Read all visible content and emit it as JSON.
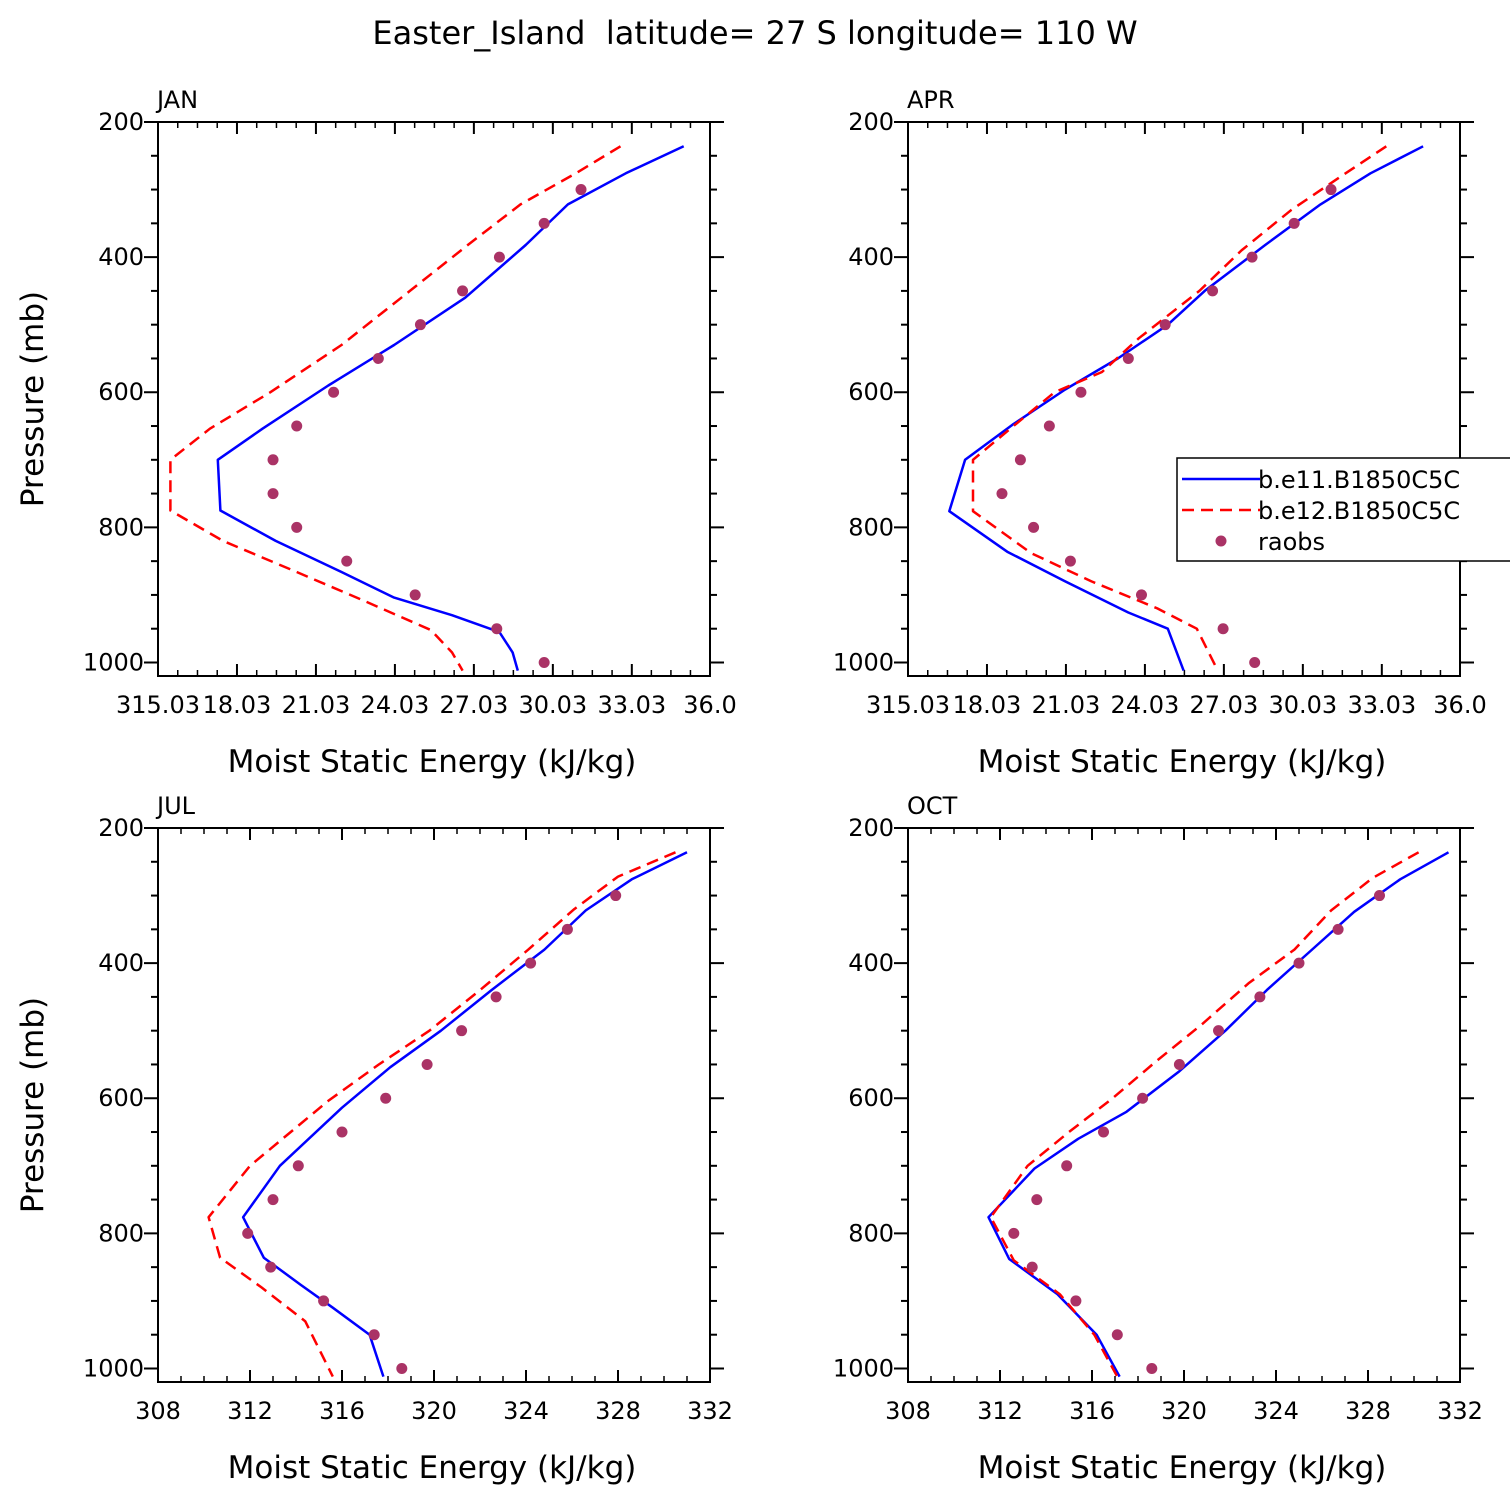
{
  "figure": {
    "title": "Easter_Island  latitude= 27 S longitude= 110 W"
  },
  "legend": {
    "entries": [
      "b.e11.B1850C5C",
      "b.e12.B1850C5C",
      "raobs"
    ],
    "placement": "right of APR panel"
  },
  "colors": {
    "series_1": "#0000ff",
    "series_2": "#ff0000",
    "raobs": "#aa3366"
  },
  "chart_data": [
    {
      "type": "line",
      "panel_label": "JAN",
      "xlabel": "Moist Static Energy (kJ/kg)",
      "ylabel": "Pressure (mb)",
      "xlim": [
        315.03,
        336.0
      ],
      "ylim": [
        1020,
        200
      ],
      "x_tick_values": [
        315.03,
        318.03,
        321.03,
        324.03,
        327.03,
        330.03,
        333.03,
        336.0
      ],
      "x_tick_labels": [
        "315.03",
        "18.03",
        "21.03",
        "24.03",
        "27.03",
        "30.03",
        "33.03",
        "36.0"
      ],
      "y_ticks": [
        200,
        400,
        600,
        800,
        1000
      ],
      "series": [
        {
          "name": "b.e11.B1850C5C",
          "style": "solid",
          "x": [
            335.0,
            332.8,
            330.6,
            329.0,
            326.7,
            324.0,
            321.5,
            319.0,
            317.3,
            317.4,
            319.5,
            322.0,
            324.0,
            326.2,
            328.0,
            328.5,
            328.7
          ],
          "y": [
            236,
            276,
            322,
            382,
            460,
            530,
            590,
            654,
            700,
            775,
            820,
            866,
            904,
            930,
            955,
            985,
            1012
          ]
        },
        {
          "name": "b.e12.B1850C5C",
          "style": "dashed",
          "x": [
            332.6,
            330.9,
            328.8,
            326.8,
            324.6,
            322.0,
            319.3,
            317.0,
            315.5,
            315.5,
            317.5,
            320.3,
            322.7,
            325.4,
            326.2,
            326.6
          ],
          "y": [
            236,
            276,
            322,
            382,
            450,
            530,
            600,
            654,
            700,
            775,
            820,
            866,
            906,
            952,
            985,
            1012
          ]
        }
      ],
      "points": {
        "name": "raobs",
        "x": [
          331.1,
          329.7,
          328.0,
          326.6,
          325.0,
          323.4,
          321.7,
          320.3,
          319.4,
          319.4,
          320.3,
          322.2,
          324.8,
          327.9,
          329.7
        ],
        "y": [
          300,
          350,
          400,
          450,
          500,
          550,
          600,
          650,
          700,
          750,
          800,
          850,
          900,
          950,
          1000
        ]
      }
    },
    {
      "type": "line",
      "panel_label": "APR",
      "xlabel": "Moist Static Energy (kJ/kg)",
      "ylabel": "",
      "xlim": [
        315.03,
        336.0
      ],
      "ylim": [
        1020,
        200
      ],
      "x_tick_values": [
        315.03,
        318.03,
        321.03,
        324.03,
        327.03,
        330.03,
        333.03,
        336.0
      ],
      "x_tick_labels": [
        "315.03",
        "18.03",
        "21.03",
        "24.03",
        "27.03",
        "30.03",
        "33.03",
        "36.0"
      ],
      "y_ticks": [
        200,
        400,
        600,
        800,
        1000
      ],
      "series": [
        {
          "name": "b.e11.B1850C5C",
          "style": "solid",
          "x": [
            334.6,
            332.6,
            330.7,
            328.6,
            326.3,
            324.9,
            323.0,
            321.0,
            319.0,
            317.2,
            316.6,
            318.8,
            321.0,
            323.4,
            324.9,
            325.5
          ],
          "y": [
            236,
            276,
            322,
            382,
            450,
            500,
            550,
            596,
            648,
            700,
            776,
            836,
            880,
            926,
            950,
            1012
          ]
        },
        {
          "name": "b.e12.B1850C5C",
          "style": "dashed",
          "x": [
            333.2,
            331.5,
            329.6,
            327.7,
            326.1,
            323.8,
            322.4,
            320.6,
            319.1,
            317.5,
            317.5,
            319.7,
            322.0,
            324.5,
            326.0,
            326.8
          ],
          "y": [
            236,
            280,
            330,
            390,
            450,
            520,
            570,
            600,
            648,
            700,
            776,
            838,
            880,
            920,
            950,
            1012
          ]
        }
      ],
      "points": {
        "name": "raobs",
        "x": [
          331.1,
          329.7,
          328.1,
          326.6,
          324.8,
          323.4,
          321.6,
          320.4,
          319.3,
          318.6,
          319.8,
          321.2,
          323.9,
          327.0,
          328.2
        ],
        "y": [
          300,
          350,
          400,
          450,
          500,
          550,
          600,
          650,
          700,
          750,
          800,
          850,
          900,
          950,
          1000
        ]
      }
    },
    {
      "type": "line",
      "panel_label": "JUL",
      "xlabel": "Moist Static Energy (kJ/kg)",
      "ylabel": "Pressure (mb)",
      "xlim": [
        308,
        332
      ],
      "ylim": [
        1020,
        200
      ],
      "x_tick_values": [
        308,
        312,
        316,
        320,
        324,
        328,
        332
      ],
      "x_tick_labels": [
        "308",
        "312",
        "316",
        "320",
        "324",
        "328",
        "332"
      ],
      "y_ticks": [
        200,
        400,
        600,
        800,
        1000
      ],
      "series": [
        {
          "name": "b.e11.B1850C5C",
          "style": "solid",
          "x": [
            331.0,
            328.6,
            326.6,
            324.8,
            322.5,
            320.3,
            318.1,
            316.0,
            313.3,
            311.7,
            312.6,
            314.2,
            315.6,
            317.2,
            317.8
          ],
          "y": [
            236,
            276,
            322,
            380,
            440,
            500,
            554,
            614,
            700,
            776,
            836,
            876,
            910,
            950,
            1012
          ]
        },
        {
          "name": "b.e12.B1850C5C",
          "style": "dashed",
          "x": [
            330.5,
            328.0,
            326.1,
            324.1,
            322.0,
            319.8,
            317.6,
            315.4,
            312.0,
            310.2,
            310.7,
            312.5,
            314.4,
            315.6
          ],
          "y": [
            236,
            272,
            320,
            380,
            440,
            500,
            550,
            604,
            700,
            776,
            836,
            880,
            930,
            1012
          ]
        }
      ],
      "points": {
        "name": "raobs",
        "x": [
          327.9,
          325.8,
          324.2,
          322.7,
          321.2,
          319.7,
          317.9,
          316.0,
          314.1,
          313.0,
          311.9,
          312.9,
          315.2,
          317.4,
          318.6
        ],
        "y": [
          300,
          350,
          400,
          450,
          500,
          550,
          600,
          650,
          700,
          750,
          800,
          850,
          900,
          950,
          1000
        ]
      }
    },
    {
      "type": "line",
      "panel_label": "OCT",
      "xlabel": "Moist Static Energy (kJ/kg)",
      "ylabel": "",
      "xlim": [
        308,
        332
      ],
      "ylim": [
        1020,
        200
      ],
      "x_tick_values": [
        308,
        312,
        316,
        320,
        324,
        328,
        332
      ],
      "x_tick_labels": [
        "308",
        "312",
        "316",
        "320",
        "324",
        "328",
        "332"
      ],
      "y_ticks": [
        200,
        400,
        600,
        800,
        1000
      ],
      "series": [
        {
          "name": "b.e11.B1850C5C",
          "style": "solid",
          "x": [
            331.5,
            329.4,
            327.4,
            325.5,
            323.6,
            321.8,
            319.8,
            317.5,
            315.4,
            313.5,
            311.5,
            312.4,
            314.5,
            316.2,
            317.2
          ],
          "y": [
            236,
            276,
            324,
            382,
            440,
            500,
            560,
            620,
            660,
            704,
            776,
            838,
            890,
            950,
            1012
          ]
        },
        {
          "name": "b.e12.B1850C5C",
          "style": "dashed",
          "x": [
            330.2,
            328.2,
            326.4,
            324.8,
            322.8,
            320.8,
            318.8,
            316.9,
            315.0,
            313.2,
            311.6,
            312.6,
            314.6,
            316.1,
            317.1
          ],
          "y": [
            236,
            274,
            322,
            380,
            430,
            490,
            545,
            600,
            650,
            700,
            776,
            840,
            890,
            950,
            1012
          ]
        }
      ],
      "points": {
        "name": "raobs",
        "x": [
          328.5,
          326.7,
          325.0,
          323.3,
          321.5,
          319.8,
          318.2,
          316.5,
          314.9,
          313.6,
          312.6,
          313.4,
          315.3,
          317.1,
          318.6
        ],
        "y": [
          300,
          350,
          400,
          450,
          500,
          550,
          600,
          650,
          700,
          750,
          800,
          850,
          900,
          950,
          1000
        ]
      }
    }
  ]
}
